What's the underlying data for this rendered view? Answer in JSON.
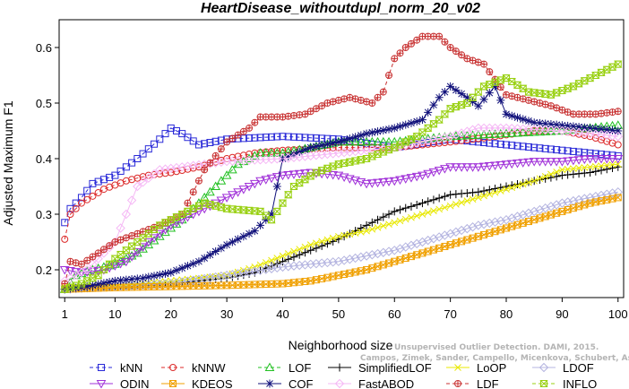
{
  "chart_data": {
    "type": "line",
    "title": "HeartDisease_withoutdupl_norm_20_v02",
    "xlabel": "Neighborhood size",
    "ylabel": "Adjusted Maximum F1",
    "xlim": [
      0,
      101
    ],
    "ylim": [
      0.15,
      0.65
    ],
    "xticks": [
      1,
      10,
      20,
      30,
      40,
      50,
      60,
      70,
      80,
      90,
      100
    ],
    "yticks": [
      0.2,
      0.3,
      0.4,
      0.5,
      0.6
    ],
    "grid": false,
    "legend_position": "bottom",
    "watermark": [
      "Unsupervised Outlier Detection. DAMI, 2015.",
      "Campos, Zimek, Sander, Campello, Micenkova, Schubert, Assent, Houle"
    ],
    "series": [
      {
        "name": "kNN",
        "color": "#2a2ad8",
        "marker": "square",
        "dash": "4,3",
        "knots": [
          [
            1,
            0.285
          ],
          [
            2,
            0.31
          ],
          [
            4,
            0.33
          ],
          [
            6,
            0.355
          ],
          [
            10,
            0.37
          ],
          [
            14,
            0.4
          ],
          [
            18,
            0.435
          ],
          [
            20,
            0.455
          ],
          [
            22,
            0.445
          ],
          [
            25,
            0.425
          ],
          [
            30,
            0.435
          ],
          [
            40,
            0.44
          ],
          [
            50,
            0.435
          ],
          [
            60,
            0.42
          ],
          [
            70,
            0.435
          ],
          [
            80,
            0.425
          ],
          [
            90,
            0.415
          ],
          [
            100,
            0.405
          ]
        ]
      },
      {
        "name": "kNNW",
        "color": "#dc2a2a",
        "marker": "circle",
        "dash": "4,3",
        "knots": [
          [
            1,
            0.255
          ],
          [
            2,
            0.3
          ],
          [
            4,
            0.32
          ],
          [
            8,
            0.345
          ],
          [
            12,
            0.36
          ],
          [
            16,
            0.37
          ],
          [
            20,
            0.375
          ],
          [
            25,
            0.385
          ],
          [
            30,
            0.4
          ],
          [
            35,
            0.41
          ],
          [
            40,
            0.415
          ],
          [
            50,
            0.42
          ],
          [
            60,
            0.42
          ],
          [
            70,
            0.43
          ],
          [
            78,
            0.44
          ],
          [
            85,
            0.45
          ],
          [
            90,
            0.45
          ],
          [
            95,
            0.44
          ],
          [
            100,
            0.425
          ]
        ]
      },
      {
        "name": "LOF",
        "color": "#22c022",
        "marker": "triangle",
        "dash": "4,3",
        "knots": [
          [
            1,
            0.165
          ],
          [
            3,
            0.19
          ],
          [
            6,
            0.2
          ],
          [
            10,
            0.21
          ],
          [
            14,
            0.23
          ],
          [
            18,
            0.26
          ],
          [
            22,
            0.29
          ],
          [
            25,
            0.32
          ],
          [
            28,
            0.35
          ],
          [
            32,
            0.39
          ],
          [
            36,
            0.41
          ],
          [
            40,
            0.41
          ],
          [
            45,
            0.42
          ],
          [
            50,
            0.43
          ],
          [
            60,
            0.43
          ],
          [
            70,
            0.44
          ],
          [
            80,
            0.445
          ],
          [
            90,
            0.45
          ],
          [
            100,
            0.46
          ]
        ]
      },
      {
        "name": "SimplifiedLOF",
        "color": "#000000",
        "marker": "plus",
        "dash": "",
        "knots": [
          [
            1,
            0.165
          ],
          [
            10,
            0.17
          ],
          [
            20,
            0.175
          ],
          [
            30,
            0.185
          ],
          [
            35,
            0.195
          ],
          [
            40,
            0.215
          ],
          [
            45,
            0.235
          ],
          [
            50,
            0.255
          ],
          [
            55,
            0.28
          ],
          [
            60,
            0.305
          ],
          [
            65,
            0.32
          ],
          [
            70,
            0.335
          ],
          [
            75,
            0.34
          ],
          [
            80,
            0.35
          ],
          [
            85,
            0.36
          ],
          [
            90,
            0.37
          ],
          [
            95,
            0.375
          ],
          [
            100,
            0.385
          ]
        ]
      },
      {
        "name": "LoOP",
        "color": "#e8e800",
        "marker": "x",
        "dash": "",
        "knots": [
          [
            1,
            0.17
          ],
          [
            10,
            0.17
          ],
          [
            20,
            0.18
          ],
          [
            30,
            0.19
          ],
          [
            35,
            0.205
          ],
          [
            40,
            0.225
          ],
          [
            45,
            0.245
          ],
          [
            50,
            0.26
          ],
          [
            55,
            0.27
          ],
          [
            60,
            0.285
          ],
          [
            65,
            0.3
          ],
          [
            70,
            0.315
          ],
          [
            75,
            0.33
          ],
          [
            80,
            0.345
          ],
          [
            85,
            0.36
          ],
          [
            90,
            0.38
          ],
          [
            95,
            0.385
          ],
          [
            100,
            0.39
          ]
        ]
      },
      {
        "name": "LDOF",
        "color": "#b4b4e0",
        "marker": "diamond",
        "dash": "",
        "knots": [
          [
            1,
            0.165
          ],
          [
            10,
            0.17
          ],
          [
            20,
            0.175
          ],
          [
            30,
            0.19
          ],
          [
            40,
            0.205
          ],
          [
            50,
            0.215
          ],
          [
            60,
            0.235
          ],
          [
            65,
            0.25
          ],
          [
            70,
            0.265
          ],
          [
            75,
            0.28
          ],
          [
            80,
            0.29
          ],
          [
            85,
            0.305
          ],
          [
            90,
            0.32
          ],
          [
            95,
            0.33
          ],
          [
            100,
            0.34
          ]
        ]
      },
      {
        "name": "ODIN",
        "color": "#a030d8",
        "marker": "tri-down",
        "dash": "",
        "knots": [
          [
            1,
            0.2
          ],
          [
            4,
            0.195
          ],
          [
            8,
            0.2
          ],
          [
            12,
            0.215
          ],
          [
            16,
            0.25
          ],
          [
            20,
            0.28
          ],
          [
            24,
            0.3
          ],
          [
            28,
            0.32
          ],
          [
            32,
            0.34
          ],
          [
            36,
            0.36
          ],
          [
            40,
            0.37
          ],
          [
            45,
            0.375
          ],
          [
            50,
            0.37
          ],
          [
            55,
            0.355
          ],
          [
            60,
            0.36
          ],
          [
            65,
            0.37
          ],
          [
            70,
            0.385
          ],
          [
            75,
            0.385
          ],
          [
            80,
            0.39
          ],
          [
            85,
            0.395
          ],
          [
            90,
            0.395
          ],
          [
            95,
            0.4
          ],
          [
            100,
            0.4
          ]
        ]
      },
      {
        "name": "KDEOS",
        "color": "#f0a000",
        "marker": "square-x",
        "dash": "",
        "knots": [
          [
            1,
            0.165
          ],
          [
            10,
            0.168
          ],
          [
            20,
            0.17
          ],
          [
            30,
            0.172
          ],
          [
            40,
            0.175
          ],
          [
            45,
            0.18
          ],
          [
            50,
            0.19
          ],
          [
            55,
            0.2
          ],
          [
            60,
            0.215
          ],
          [
            65,
            0.23
          ],
          [
            70,
            0.245
          ],
          [
            75,
            0.26
          ],
          [
            80,
            0.275
          ],
          [
            85,
            0.29
          ],
          [
            90,
            0.305
          ],
          [
            95,
            0.32
          ],
          [
            100,
            0.33
          ]
        ]
      },
      {
        "name": "COF",
        "color": "#10107a",
        "marker": "asterisk",
        "dash": "",
        "knots": [
          [
            1,
            0.165
          ],
          [
            5,
            0.17
          ],
          [
            10,
            0.18
          ],
          [
            15,
            0.185
          ],
          [
            20,
            0.195
          ],
          [
            25,
            0.215
          ],
          [
            30,
            0.245
          ],
          [
            35,
            0.27
          ],
          [
            38,
            0.3
          ],
          [
            40,
            0.4
          ],
          [
            45,
            0.42
          ],
          [
            50,
            0.43
          ],
          [
            55,
            0.445
          ],
          [
            60,
            0.455
          ],
          [
            65,
            0.47
          ],
          [
            68,
            0.51
          ],
          [
            70,
            0.53
          ],
          [
            73,
            0.51
          ],
          [
            75,
            0.495
          ],
          [
            78,
            0.53
          ],
          [
            80,
            0.48
          ],
          [
            85,
            0.465
          ],
          [
            90,
            0.46
          ],
          [
            95,
            0.455
          ],
          [
            100,
            0.45
          ]
        ]
      },
      {
        "name": "FastABOD",
        "color": "#f5b8f5",
        "marker": "diamond",
        "dash": "",
        "knots": [
          [
            1,
            0.18
          ],
          [
            5,
            0.2
          ],
          [
            10,
            0.25
          ],
          [
            14,
            0.35
          ],
          [
            18,
            0.38
          ],
          [
            22,
            0.385
          ],
          [
            26,
            0.39
          ],
          [
            30,
            0.395
          ],
          [
            40,
            0.4
          ],
          [
            50,
            0.41
          ],
          [
            60,
            0.42
          ],
          [
            70,
            0.44
          ],
          [
            75,
            0.455
          ],
          [
            80,
            0.455
          ],
          [
            90,
            0.45
          ],
          [
            100,
            0.44
          ]
        ]
      },
      {
        "name": "LDF",
        "color": "#c83232",
        "marker": "circle-plus",
        "dash": "4,3",
        "knots": [
          [
            1,
            0.175
          ],
          [
            2,
            0.215
          ],
          [
            4,
            0.21
          ],
          [
            7,
            0.23
          ],
          [
            10,
            0.25
          ],
          [
            14,
            0.265
          ],
          [
            18,
            0.28
          ],
          [
            22,
            0.3
          ],
          [
            26,
            0.38
          ],
          [
            30,
            0.43
          ],
          [
            34,
            0.455
          ],
          [
            36,
            0.475
          ],
          [
            40,
            0.475
          ],
          [
            44,
            0.48
          ],
          [
            48,
            0.5
          ],
          [
            52,
            0.51
          ],
          [
            56,
            0.5
          ],
          [
            58,
            0.52
          ],
          [
            60,
            0.58
          ],
          [
            62,
            0.6
          ],
          [
            65,
            0.62
          ],
          [
            68,
            0.62
          ],
          [
            70,
            0.6
          ],
          [
            73,
            0.58
          ],
          [
            76,
            0.57
          ],
          [
            80,
            0.515
          ],
          [
            84,
            0.505
          ],
          [
            88,
            0.495
          ],
          [
            92,
            0.48
          ],
          [
            96,
            0.48
          ],
          [
            100,
            0.485
          ]
        ]
      },
      {
        "name": "INFLO",
        "color": "#98d010",
        "marker": "hourglass",
        "dash": "4,3",
        "knots": [
          [
            1,
            0.165
          ],
          [
            4,
            0.175
          ],
          [
            7,
            0.19
          ],
          [
            10,
            0.22
          ],
          [
            14,
            0.25
          ],
          [
            18,
            0.28
          ],
          [
            22,
            0.3
          ],
          [
            26,
            0.32
          ],
          [
            30,
            0.31
          ],
          [
            36,
            0.305
          ],
          [
            38,
            0.29
          ],
          [
            42,
            0.35
          ],
          [
            46,
            0.375
          ],
          [
            50,
            0.39
          ],
          [
            55,
            0.4
          ],
          [
            60,
            0.42
          ],
          [
            64,
            0.44
          ],
          [
            68,
            0.47
          ],
          [
            70,
            0.49
          ],
          [
            73,
            0.5
          ],
          [
            76,
            0.53
          ],
          [
            80,
            0.545
          ],
          [
            84,
            0.52
          ],
          [
            88,
            0.515
          ],
          [
            92,
            0.53
          ],
          [
            96,
            0.55
          ],
          [
            100,
            0.57
          ]
        ]
      }
    ]
  }
}
